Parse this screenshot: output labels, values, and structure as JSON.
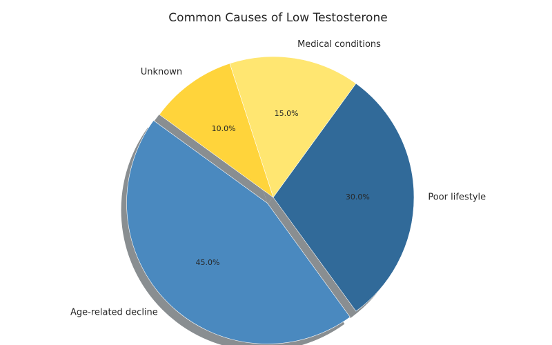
{
  "chart_data": {
    "type": "pie",
    "title": "Common Causes of Low Testosterone",
    "categories": [
      "Age-related decline",
      "Poor lifestyle",
      "Medical conditions",
      "Unknown"
    ],
    "values": [
      45.0,
      30.0,
      15.0,
      10.0
    ],
    "value_labels": [
      "45.0%",
      "30.0%",
      "15.0%",
      "10.0%"
    ],
    "colors": [
      "#4a89bf",
      "#316a99",
      "#ffe671",
      "#ffd43b"
    ],
    "shadow_color": "#898e91",
    "exploded": [
      "Age-related decline"
    ],
    "shadow": true,
    "start_angle_deg": 144,
    "direction": "counterclockwise",
    "legend": "none"
  }
}
